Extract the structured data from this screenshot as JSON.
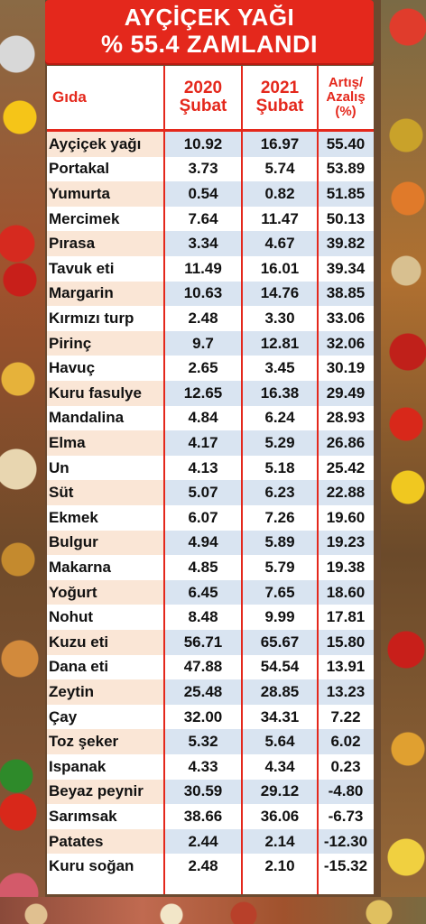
{
  "header": {
    "title_line1": "AYÇİÇEK YAĞI",
    "title_line2": "% 55.4 ZAMLANDI"
  },
  "table": {
    "col_food": "Gıda",
    "col_2020_line1": "2020",
    "col_2020_line2": "Şubat",
    "col_2021_line1": "2021",
    "col_2021_line2": "Şubat",
    "col_change_line1": "Artış/",
    "col_change_line2": "Azalış",
    "col_change_line3": "(%)"
  },
  "chart_data": {
    "type": "table",
    "title": "AYÇİÇEK YAĞI % 55.4 ZAMLANDI",
    "columns": [
      "Gıda",
      "2020 Şubat",
      "2021 Şubat",
      "Artış/ Azalış (%)"
    ],
    "rows": [
      {
        "food": "Ayçiçek yağı",
        "v2020": "10.92",
        "v2021": "16.97",
        "change": "55.40"
      },
      {
        "food": "Portakal",
        "v2020": "3.73",
        "v2021": "5.74",
        "change": "53.89"
      },
      {
        "food": "Yumurta",
        "v2020": "0.54",
        "v2021": "0.82",
        "change": "51.85"
      },
      {
        "food": "Mercimek",
        "v2020": "7.64",
        "v2021": "11.47",
        "change": "50.13"
      },
      {
        "food": "Pırasa",
        "v2020": "3.34",
        "v2021": "4.67",
        "change": "39.82"
      },
      {
        "food": "Tavuk eti",
        "v2020": "11.49",
        "v2021": "16.01",
        "change": "39.34"
      },
      {
        "food": "Margarin",
        "v2020": "10.63",
        "v2021": "14.76",
        "change": "38.85"
      },
      {
        "food": "Kırmızı turp",
        "v2020": "2.48",
        "v2021": "3.30",
        "change": "33.06"
      },
      {
        "food": "Pirinç",
        "v2020": "9.7",
        "v2021": "12.81",
        "change": "32.06"
      },
      {
        "food": "Havuç",
        "v2020": "2.65",
        "v2021": "3.45",
        "change": "30.19"
      },
      {
        "food": "Kuru fasulye",
        "v2020": "12.65",
        "v2021": "16.38",
        "change": "29.49"
      },
      {
        "food": "Mandalina",
        "v2020": "4.84",
        "v2021": "6.24",
        "change": "28.93"
      },
      {
        "food": "Elma",
        "v2020": "4.17",
        "v2021": "5.29",
        "change": "26.86"
      },
      {
        "food": "Un",
        "v2020": "4.13",
        "v2021": "5.18",
        "change": "25.42"
      },
      {
        "food": "Süt",
        "v2020": "5.07",
        "v2021": "6.23",
        "change": "22.88"
      },
      {
        "food": "Ekmek",
        "v2020": "6.07",
        "v2021": "7.26",
        "change": "19.60"
      },
      {
        "food": "Bulgur",
        "v2020": "4.94",
        "v2021": "5.89",
        "change": "19.23"
      },
      {
        "food": "Makarna",
        "v2020": "4.85",
        "v2021": "5.79",
        "change": "19.38"
      },
      {
        "food": "Yoğurt",
        "v2020": "6.45",
        "v2021": "7.65",
        "change": "18.60"
      },
      {
        "food": "Nohut",
        "v2020": "8.48",
        "v2021": "9.99",
        "change": "17.81"
      },
      {
        "food": "Kuzu eti",
        "v2020": "56.71",
        "v2021": "65.67",
        "change": "15.80"
      },
      {
        "food": "Dana eti",
        "v2020": "47.88",
        "v2021": "54.54",
        "change": "13.91"
      },
      {
        "food": "Zeytin",
        "v2020": "25.48",
        "v2021": "28.85",
        "change": "13.23"
      },
      {
        "food": "Çay",
        "v2020": "32.00",
        "v2021": "34.31",
        "change": "7.22"
      },
      {
        "food": "Toz şeker",
        "v2020": "5.32",
        "v2021": "5.64",
        "change": "6.02"
      },
      {
        "food": "Ispanak",
        "v2020": "4.33",
        "v2021": "4.34",
        "change": "0.23"
      },
      {
        "food": "Beyaz peynir",
        "v2020": "30.59",
        "v2021": "29.12",
        "change": "-4.80"
      },
      {
        "food": "Sarımsak",
        "v2020": "38.66",
        "v2021": "36.06",
        "change": "-6.73"
      },
      {
        "food": "Patates",
        "v2020": "2.44",
        "v2021": "2.14",
        "change": "-12.30"
      },
      {
        "food": "Kuru soğan",
        "v2020": "2.48",
        "v2021": "2.10",
        "change": "-15.32"
      }
    ]
  },
  "colors": {
    "accent": "#e4281c",
    "row_tint": "#fae6d6",
    "number_cell": "#d9e4f1"
  }
}
